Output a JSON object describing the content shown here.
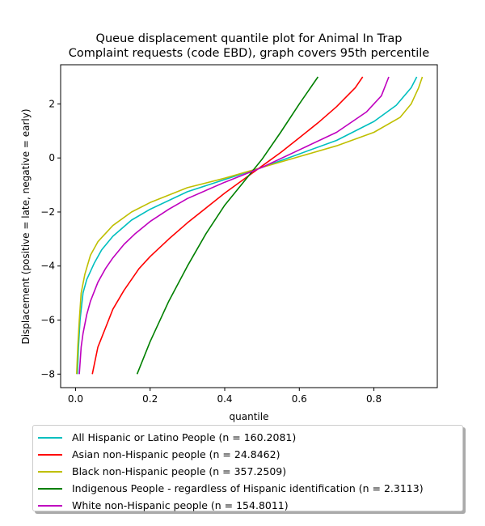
{
  "chart_data": {
    "type": "line",
    "title_line1": "Queue displacement quantile plot for Animal In Trap",
    "title_line2": "Complaint  requests (code EBD), graph covers 95th percentile",
    "xlabel": "quantile",
    "ylabel": "Displacement (positive = late, negative = early)",
    "xlim": [
      -0.04,
      0.97
    ],
    "ylim": [
      -8.5,
      3.45
    ],
    "x_ticks": [
      0.0,
      0.2,
      0.4,
      0.6,
      0.8
    ],
    "x_tick_labels": [
      "0.0",
      "0.2",
      "0.4",
      "0.6",
      "0.8"
    ],
    "y_ticks": [
      -8,
      -6,
      -4,
      -2,
      0,
      2
    ],
    "y_tick_labels": [
      "−8",
      "−6",
      "−4",
      "−2",
      "0",
      "2"
    ],
    "grid": false,
    "legend_position": "below",
    "series": [
      {
        "name": "All Hispanic or Latino People (n = 160.2081)",
        "color": "#00bfbf",
        "x": [
          0.005,
          0.008,
          0.012,
          0.02,
          0.03,
          0.05,
          0.07,
          0.1,
          0.15,
          0.2,
          0.3,
          0.4,
          0.5,
          0.6,
          0.7,
          0.8,
          0.86,
          0.9,
          0.915
        ],
        "y": [
          -8,
          -7,
          -6,
          -5,
          -4.5,
          -3.9,
          -3.4,
          -2.9,
          -2.3,
          -1.9,
          -1.25,
          -0.8,
          -0.35,
          0.15,
          0.65,
          1.35,
          1.95,
          2.6,
          3
        ]
      },
      {
        "name": "Asian non-Hispanic people (n = 24.8462)",
        "color": "#ff0000",
        "x": [
          0.045,
          0.06,
          0.08,
          0.1,
          0.13,
          0.17,
          0.2,
          0.25,
          0.3,
          0.35,
          0.4,
          0.45,
          0.5,
          0.55,
          0.6,
          0.65,
          0.7,
          0.75,
          0.77
        ],
        "y": [
          -8,
          -7,
          -6.3,
          -5.6,
          -4.9,
          -4.1,
          -3.65,
          -3.0,
          -2.4,
          -1.85,
          -1.3,
          -0.8,
          -0.3,
          0.2,
          0.75,
          1.3,
          1.9,
          2.6,
          3
        ]
      },
      {
        "name": "Black non-Hispanic people (n = 357.2509)",
        "color": "#bfbf00",
        "x": [
          0.003,
          0.006,
          0.01,
          0.015,
          0.025,
          0.04,
          0.06,
          0.1,
          0.15,
          0.2,
          0.3,
          0.4,
          0.5,
          0.6,
          0.7,
          0.8,
          0.87,
          0.9,
          0.92,
          0.93
        ],
        "y": [
          -8,
          -7,
          -6,
          -5,
          -4.3,
          -3.6,
          -3.1,
          -2.5,
          -2.0,
          -1.65,
          -1.1,
          -0.75,
          -0.35,
          0.05,
          0.45,
          0.95,
          1.5,
          2.0,
          2.6,
          3
        ]
      },
      {
        "name": "Indigenous People - regardless of Hispanic identification (n = 2.3113)",
        "color": "#008000",
        "x": [
          0.165,
          0.2,
          0.25,
          0.3,
          0.35,
          0.4,
          0.45,
          0.5,
          0.55,
          0.6,
          0.65
        ],
        "y": [
          -8,
          -6.8,
          -5.3,
          -4.0,
          -2.8,
          -1.75,
          -0.9,
          -0.05,
          0.95,
          2.0,
          3
        ]
      },
      {
        "name": "White non-Hispanic people (n = 154.8011)",
        "color": "#bf00bf",
        "x": [
          0.01,
          0.015,
          0.02,
          0.03,
          0.04,
          0.06,
          0.08,
          0.1,
          0.13,
          0.16,
          0.2,
          0.25,
          0.3,
          0.4,
          0.5,
          0.6,
          0.7,
          0.78,
          0.82,
          0.84
        ],
        "y": [
          -8,
          -7,
          -6.5,
          -5.8,
          -5.3,
          -4.6,
          -4.1,
          -3.7,
          -3.2,
          -2.8,
          -2.35,
          -1.9,
          -1.5,
          -0.9,
          -0.35,
          0.3,
          0.95,
          1.7,
          2.3,
          3
        ]
      }
    ]
  }
}
